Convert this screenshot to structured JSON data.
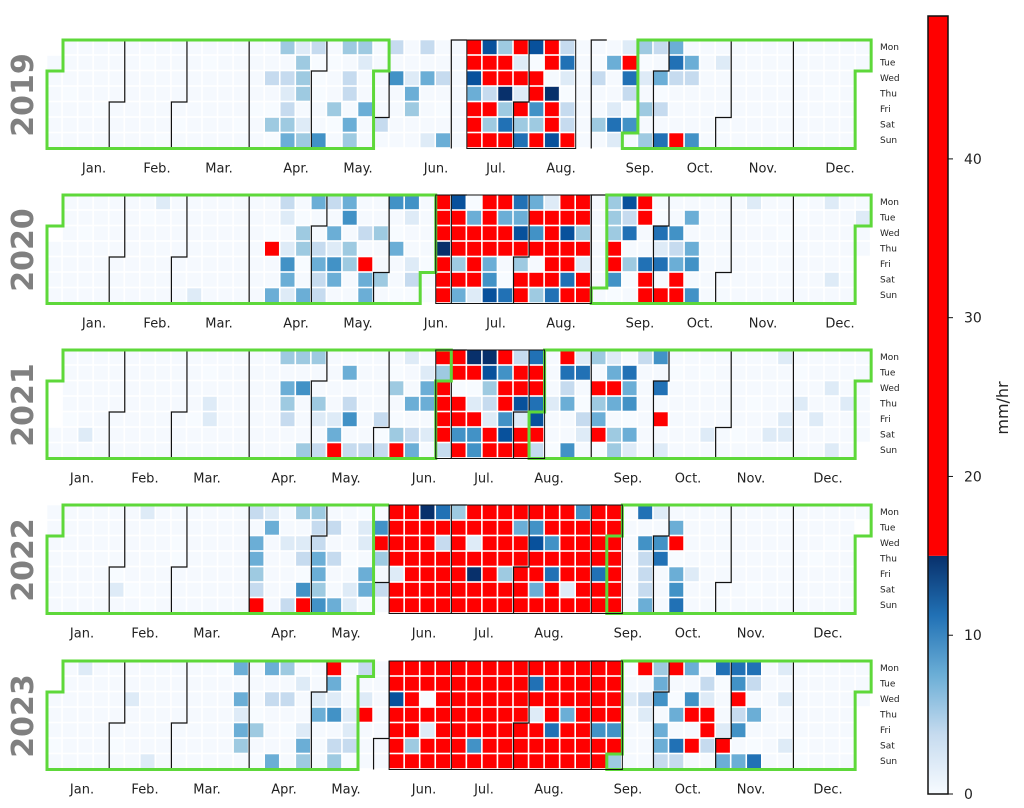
{
  "chart_data": {
    "type": "heatmap",
    "title": "",
    "colorbar": {
      "label": "mm/hr",
      "ticks": [
        0,
        10,
        20,
        30,
        40
      ],
      "range": [
        0,
        49
      ],
      "scale": [
        {
          "from": 0,
          "to": 15,
          "colors": [
            "#f7fbff",
            "#c6dbef",
            "#6baed6",
            "#2171b5",
            "#08306b"
          ]
        },
        {
          "from": 15,
          "to": 49,
          "colors": [
            "#ff0000"
          ]
        }
      ]
    },
    "month_labels": [
      "Jan.",
      "Feb.",
      "Mar.",
      "Apr.",
      "May.",
      "Jun.",
      "Jul.",
      "Aug.",
      "Sep.",
      "Oct.",
      "Nov.",
      "Dec."
    ],
    "day_labels": [
      "Mon",
      "Tue",
      "Wed",
      "Thu",
      "Fri",
      "Sat",
      "Sun"
    ],
    "highlight_color": "#5ed83a",
    "years": [
      {
        "year": "2019",
        "season_start_week": 22,
        "season_end_week": 38,
        "season_start_day": 2,
        "season_end_day": 0,
        "wet_weeks": [
          [
            14,
            26
          ],
          [
            27,
            34
          ],
          [
            35,
            42
          ]
        ],
        "intensity": 0.45
      },
      {
        "year": "2020",
        "season_start_week": 25,
        "season_end_week": 36,
        "season_start_day": 5,
        "season_end_day": 0,
        "wet_weeks": [
          [
            14,
            24
          ],
          [
            25,
            35
          ],
          [
            36,
            42
          ]
        ],
        "intensity": 0.6
      },
      {
        "year": "2021",
        "season_start_week": 26,
        "season_end_week": 32,
        "season_start_day": 2,
        "season_end_day": 2,
        "wet_weeks": [
          [
            15,
            25
          ],
          [
            25,
            32
          ],
          [
            33,
            40
          ]
        ],
        "intensity": 0.45
      },
      {
        "year": "2022",
        "season_start_week": 22,
        "season_end_week": 37,
        "season_start_day": 0,
        "season_end_day": 4,
        "wet_weeks": [
          [
            13,
            22
          ],
          [
            22,
            37
          ],
          [
            38,
            41
          ]
        ],
        "intensity": 0.85
      },
      {
        "year": "2023",
        "season_start_week": 21,
        "season_end_week": 37,
        "season_start_day": 1,
        "season_end_day": 0,
        "wet_weeks": [
          [
            12,
            21
          ],
          [
            22,
            37
          ],
          [
            38,
            46
          ]
        ],
        "intensity": 0.85
      }
    ]
  }
}
